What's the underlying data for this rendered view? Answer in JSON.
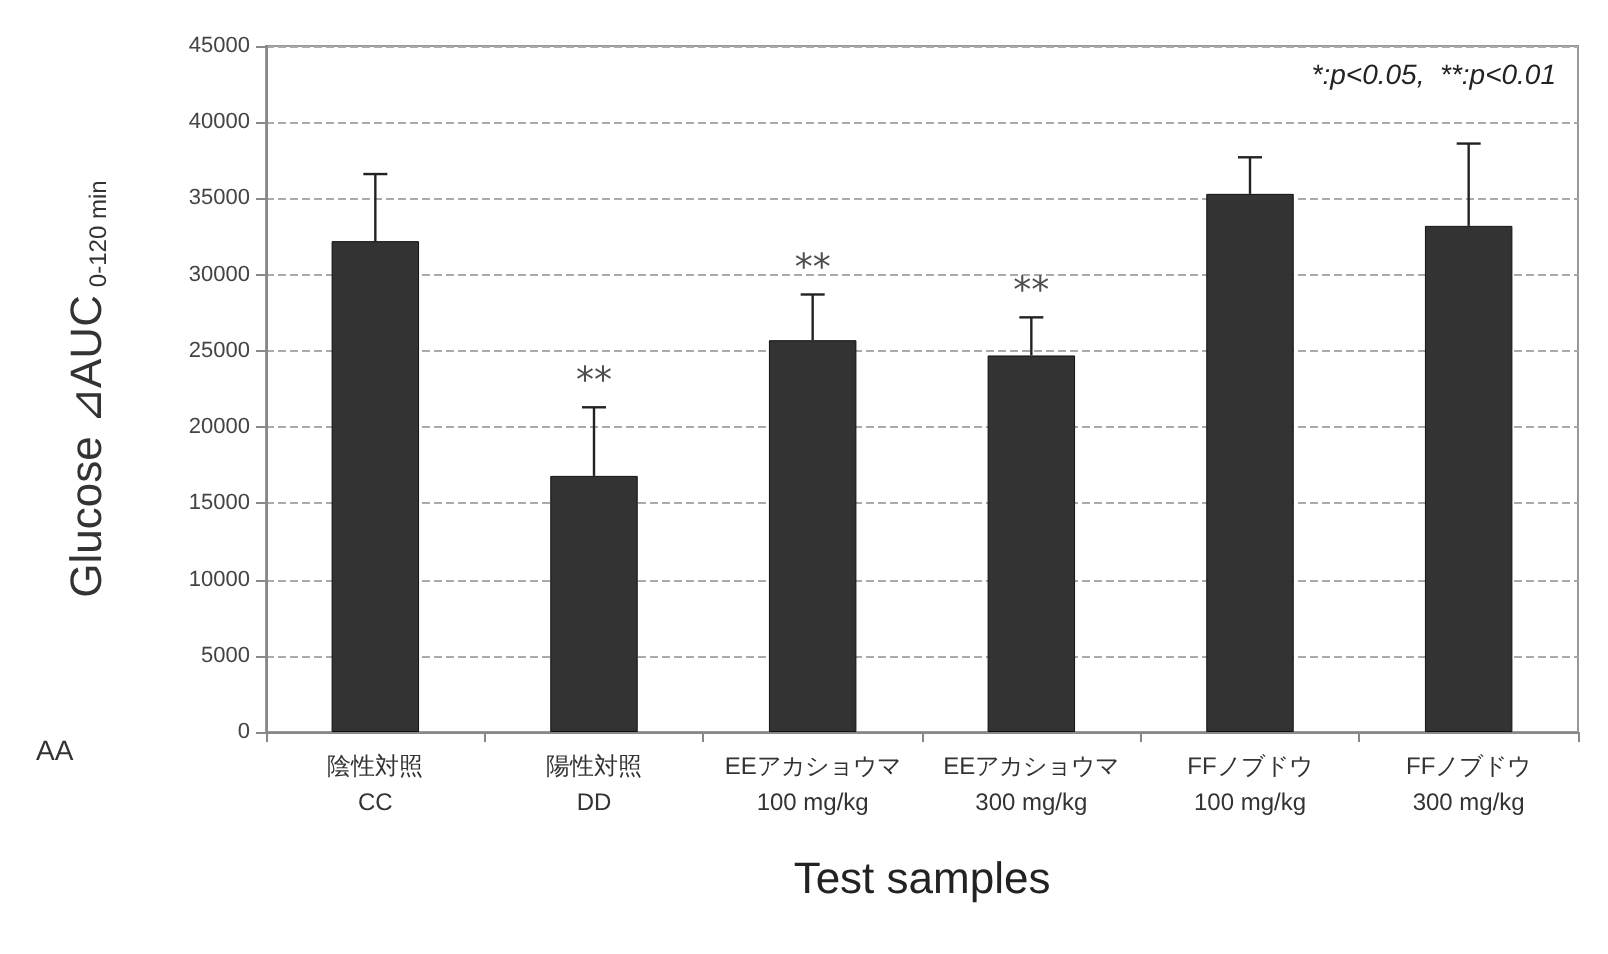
{
  "chart_data": {
    "type": "bar",
    "categories": [
      "陰性対照\nCC",
      "陽性対照\nDD",
      "EEアカショウマ\n100 mg/kg",
      "EEアカショウマ\n300 mg/kg",
      "FFノブドウ\n100 mg/kg",
      "FFノブドウ\n300 mg/kg"
    ],
    "values": [
      32200,
      16800,
      25700,
      24700,
      35300,
      33200
    ],
    "errors": [
      [
        32200,
        36600
      ],
      [
        16800,
        21300
      ],
      [
        25700,
        28700
      ],
      [
        24700,
        27200
      ],
      [
        35300,
        37700
      ],
      [
        33200,
        38600
      ]
    ],
    "color": "#333333",
    "xlabel": "Test samples",
    "ylabel": "Glucose ⊿AUC$_{0-120 min}$",
    "ylim": [
      0,
      45000
    ],
    "yticks": [
      0,
      5000,
      10000,
      15000,
      20000,
      25000,
      30000,
      35000,
      40000,
      45000
    ],
    "grid": "y",
    "annotations": [
      "*:p<0.05,  **:p<0.01",
      "AA",
      {
        "text": "**",
        "x": "陽性対照\nDD",
        "y": 21300
      },
      {
        "text": "**",
        "x": "EEアカショウマ\n100 mg/kg",
        "y": 28700
      },
      {
        "text": "**",
        "x": "EEアカショウマ\n300 mg/kg",
        "y": 27200
      }
    ]
  }
}
